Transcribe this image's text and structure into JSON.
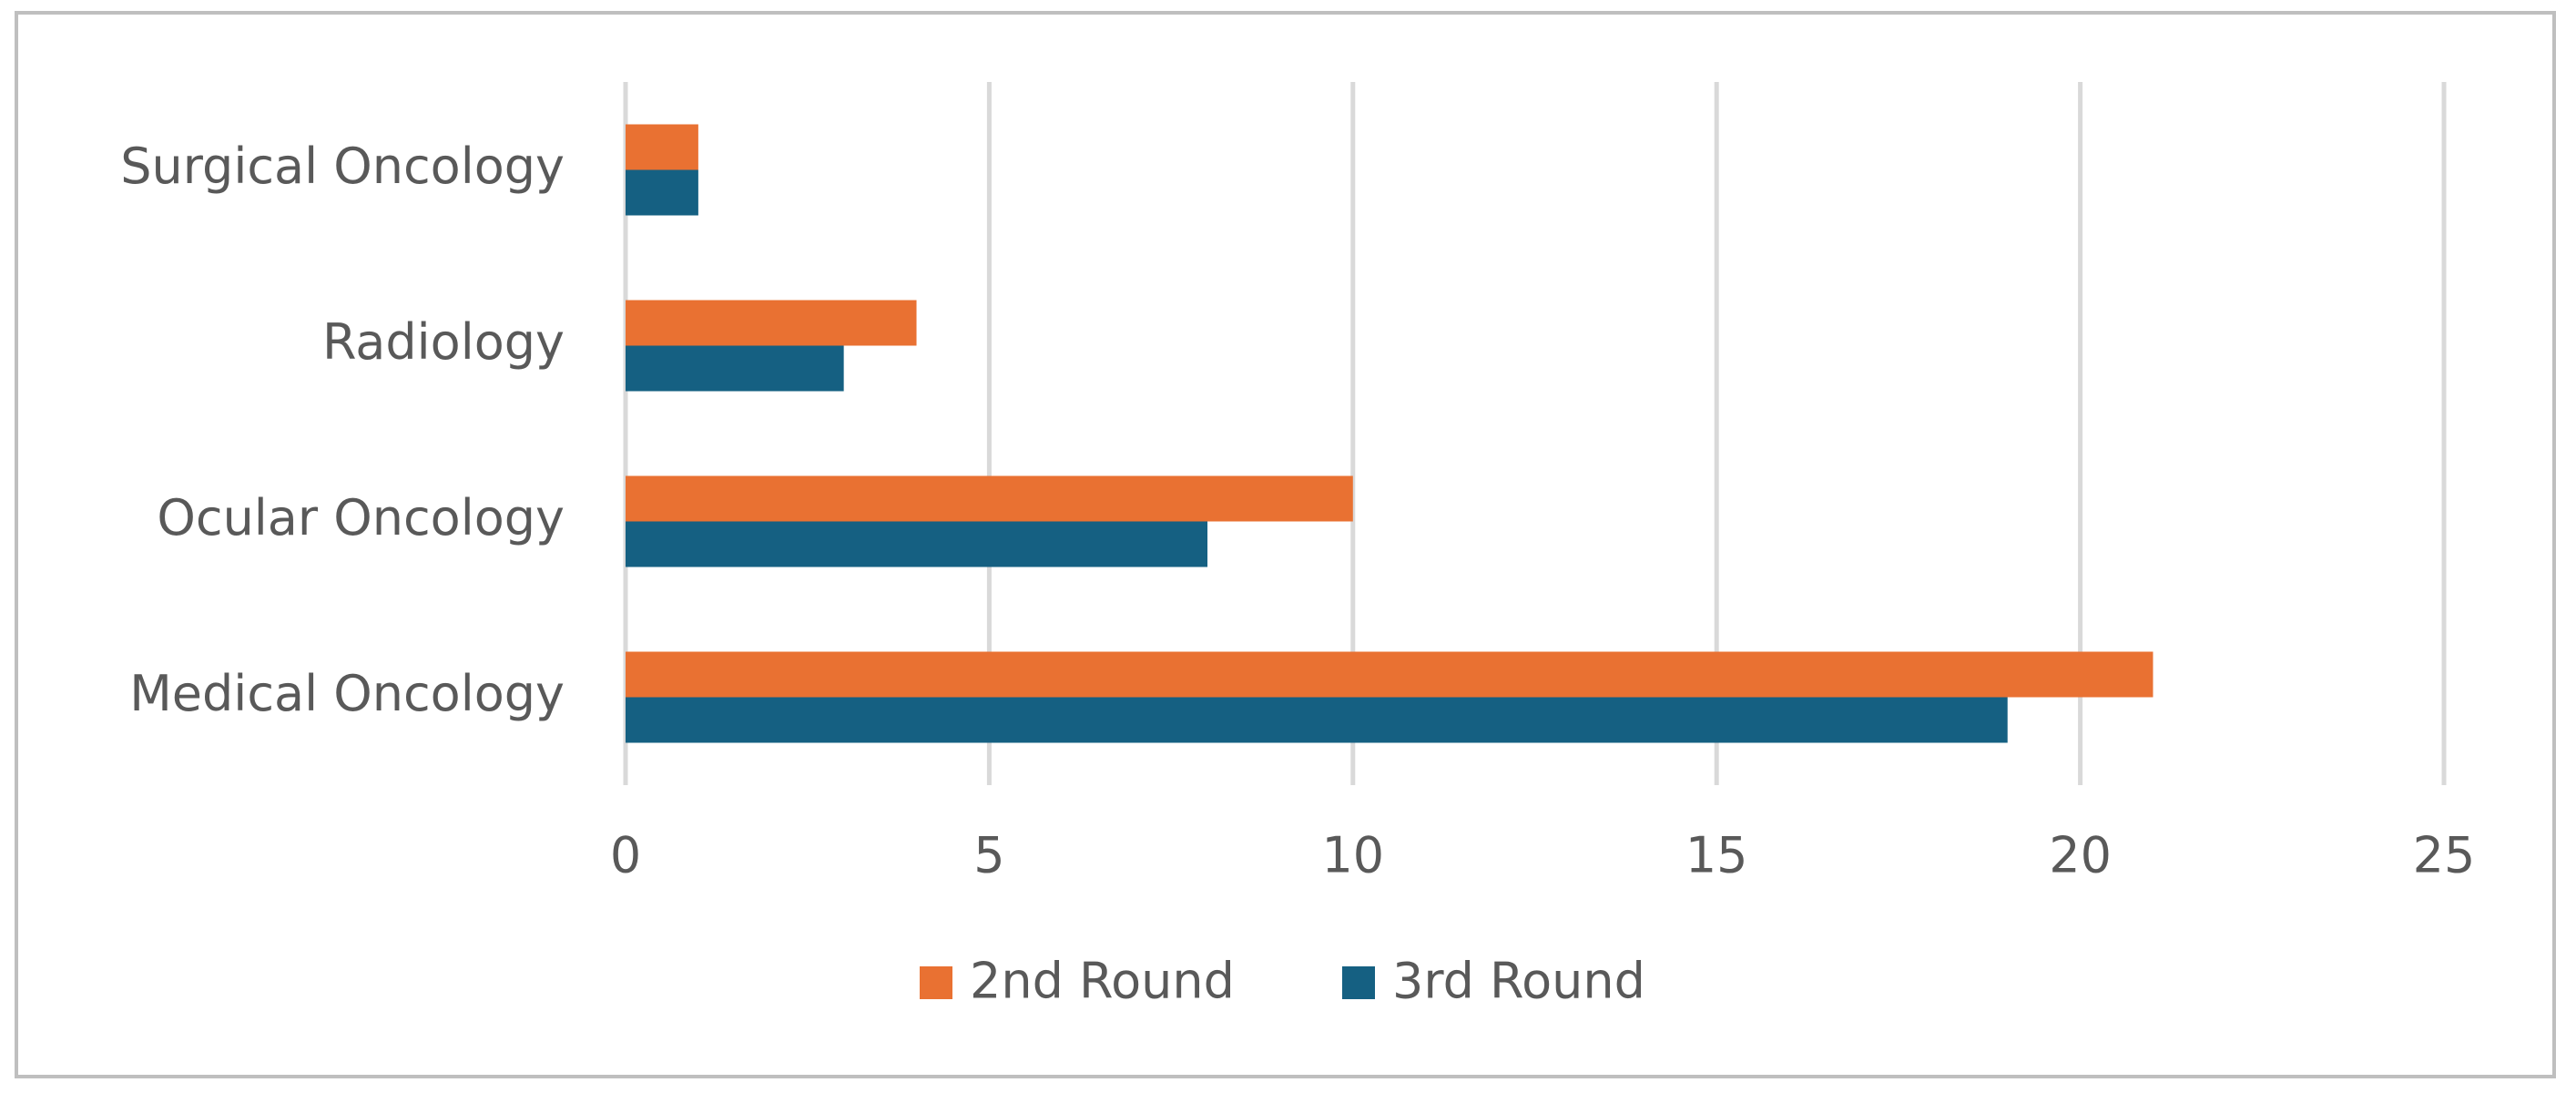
{
  "chart_data": {
    "type": "bar",
    "orientation": "horizontal",
    "categories": [
      "Surgical Oncology",
      "Radiology",
      "Ocular Oncology",
      "Medical Oncology"
    ],
    "series": [
      {
        "name": "2nd Round",
        "color": "#e97132",
        "values": [
          1,
          4,
          10,
          21
        ]
      },
      {
        "name": "3rd Round",
        "color": "#156082",
        "values": [
          1,
          3,
          8,
          19
        ]
      }
    ],
    "xlim": [
      0,
      25
    ],
    "xticks": [
      0,
      5,
      10,
      15,
      20,
      25
    ],
    "grid": true,
    "legend": "bottom"
  }
}
